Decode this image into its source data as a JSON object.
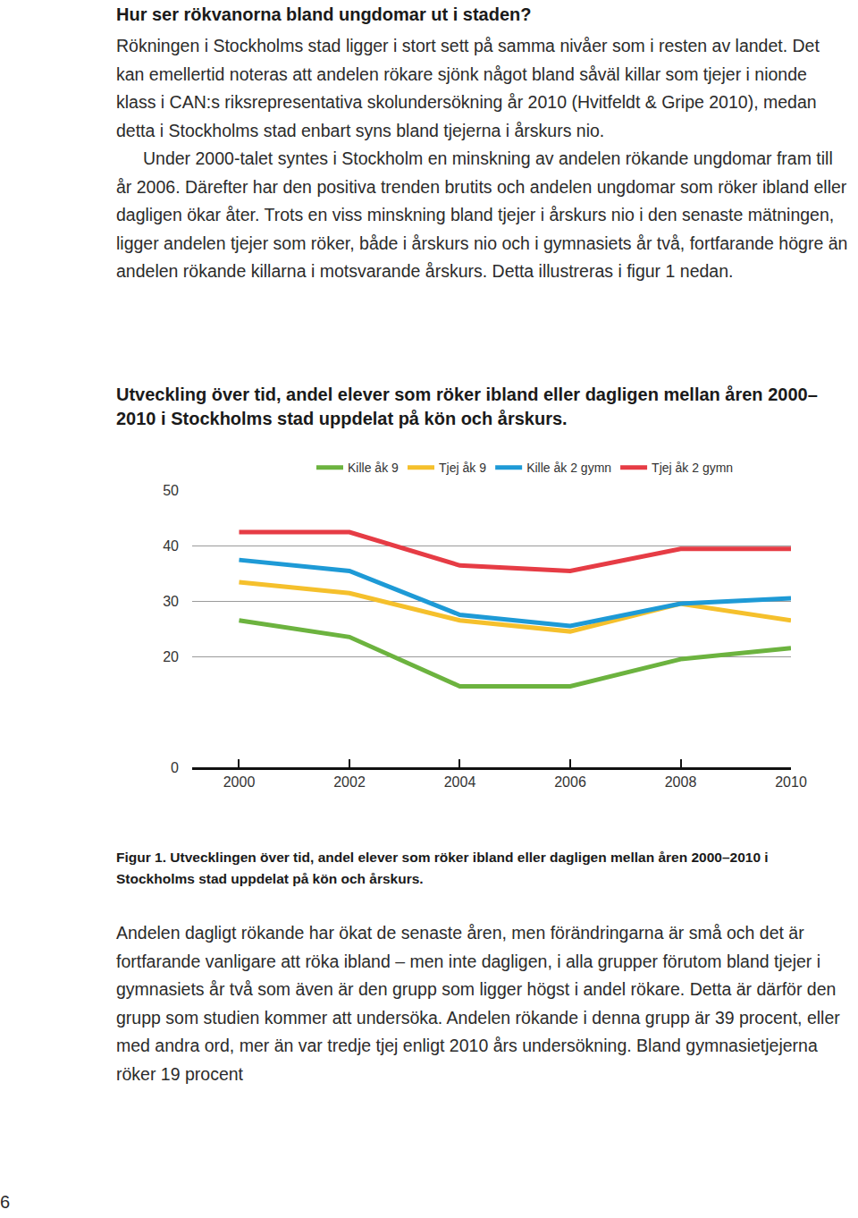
{
  "heading": "Hur ser rökvanorna bland ungdomar ut i staden?",
  "paragraphs": [
    "Rökningen i Stockholms stad ligger i stort sett på samma nivåer som i resten av landet. Det kan emellertid noteras att andelen rökare sjönk något bland såväl killar som tjejer i nionde klass i CAN:s riksrepresentativa skolundersökning år 2010 (Hvitfeldt & Gripe 2010), medan detta i Stockholms stad enbart syns bland tjejerna i årskurs nio.",
    "Under 2000-talet syntes i Stockholm en minskning av andelen rökande ungdomar fram till år 2006. Därefter har den positiva trenden brutits och andelen ungdomar som röker ibland eller dagligen ökar åter. Trots en viss minskning bland tjejer i årskurs nio i den senaste mätningen, ligger andelen tjejer som röker, både i årskurs nio och i gymnasiets år två, fortfarande högre än andelen rökande killarna i motsvarande årskurs. Detta illustreras i figur 1 nedan."
  ],
  "chart_data": {
    "type": "line",
    "title": "Utveckling över tid, andel elever som röker ibland eller dagligen mellan åren 2000–2010 i Stockholms stad uppdelat på kön och årskurs.",
    "x": [
      2000,
      2002,
      2004,
      2006,
      2008,
      2010
    ],
    "xlim": [
      1999.15,
      2010
    ],
    "xticks": [
      2000,
      2002,
      2004,
      2006,
      2008,
      2010
    ],
    "ylim": [
      0,
      50
    ],
    "yticks": [
      0,
      20,
      30,
      40,
      50
    ],
    "grid": true,
    "legend": "top",
    "series": [
      {
        "name": "Kille åk 9",
        "color": "#6cb33f",
        "values": [
          26.5,
          23.5,
          14.6,
          14.6,
          19.5,
          21.5
        ]
      },
      {
        "name": "Tjej åk 9",
        "color": "#f5c02c",
        "values": [
          33.4,
          31.4,
          26.5,
          24.5,
          29.5,
          26.5
        ]
      },
      {
        "name": "Kille åk 2 gymn",
        "color": "#1e9ad6",
        "values": [
          37.4,
          35.4,
          27.5,
          25.5,
          29.5,
          30.5
        ]
      },
      {
        "name": "Tjej åk 2 gymn",
        "color": "#e63c45",
        "values": [
          42.4,
          42.4,
          36.4,
          35.4,
          39.4,
          39.4
        ]
      }
    ]
  },
  "caption": "Figur 1. Utvecklingen över tid, andel elever som röker ibland eller dagligen mellan åren 2000–2010 i Stockholms stad uppdelat på kön och årskurs.",
  "text": [
    "Andelen dagligt rökande har ökat de senaste åren, men förändringarna är små och det är fortfarande vanligare att röka ibland – men inte dagligen, i alla grupper förutom bland tjejer i gymnasiets år två som även är den grupp som ligger högst i andel rökare. Detta är därför den grupp som studien kommer att undersöka. Andelen rökande i denna grupp är 39 procent, eller med andra ord, mer än var tredje tjej enligt 2010 års undersökning. Bland gymnasietjejerna röker 19 procent"
  ],
  "page_number": "6"
}
